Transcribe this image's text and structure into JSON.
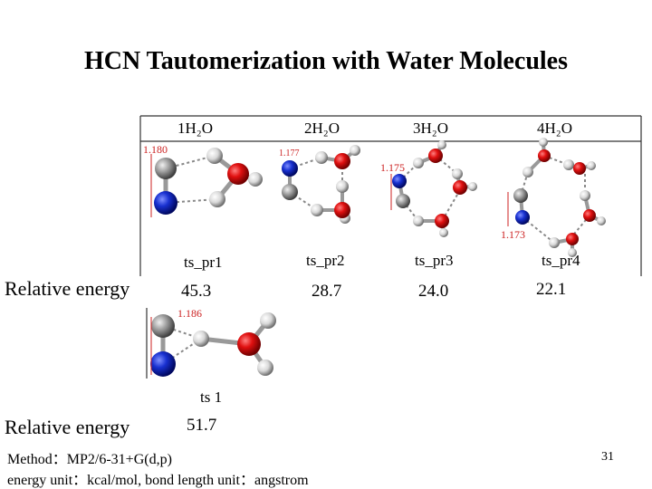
{
  "title": "HCN Tautomerization with Water Molecules",
  "row1": {
    "label": "Relative energy",
    "structures": [
      {
        "header": "1H₂O",
        "name": "ts_pr1",
        "bond": "1.180",
        "energy": "45.3"
      },
      {
        "header": "2H₂O",
        "name": "ts_pr2",
        "bond": "1.177",
        "energy": "28.7"
      },
      {
        "header": "3H₂O",
        "name": "ts_pr3",
        "bond": "1.175",
        "energy": "24.0"
      },
      {
        "header": "4H₂O",
        "name": "ts_pr4",
        "bond": "1.173",
        "energy": "22.1"
      }
    ]
  },
  "row2": {
    "label": "Relative energy",
    "structures": [
      {
        "name": "ts 1",
        "bond": "1.186",
        "energy": "51.7"
      }
    ]
  },
  "footer": {
    "method": "Method：MP2/6-31+G(d,p)",
    "units": "energy unit：kcal/mol, bond length unit：angstrom",
    "page_number": "31"
  },
  "colors": {
    "oxygen": "#d01010",
    "nitrogen": "#1020c0",
    "carbon": "#909090",
    "hydrogen": "#e6e6e6"
  }
}
